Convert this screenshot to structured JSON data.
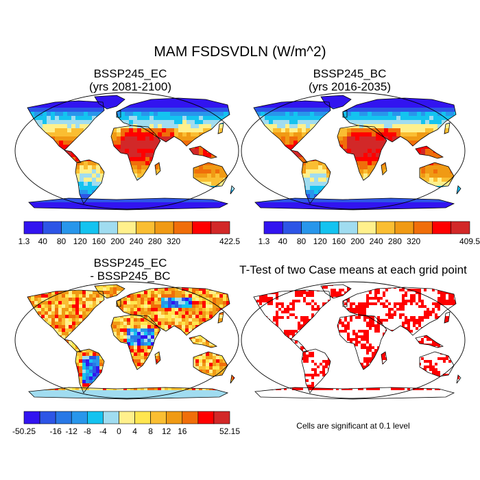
{
  "title": "MAM FSDSVDLN (W/m^2)",
  "chart_data": [
    {
      "type": "map",
      "id": "ec",
      "title": "BSSP245_EC",
      "subtitle": "(yrs 2081-2100)",
      "colorbar": {
        "labels": [
          "1.3",
          "40",
          "80",
          "120",
          "160",
          "200",
          "240",
          "280",
          "320",
          "",
          "422.5"
        ],
        "colors": [
          "#3214f0",
          "#2d55e6",
          "#2896eb",
          "#14c3f0",
          "#a0dcf0",
          "#fff08c",
          "#fabe32",
          "#f09a14",
          "#f06e0a",
          "#ff0000",
          "#d22828"
        ]
      }
    },
    {
      "type": "map",
      "id": "bc",
      "title": "BSSP245_BC",
      "subtitle": "(yrs 2016-2035)",
      "colorbar": {
        "labels": [
          "1.3",
          "40",
          "80",
          "120",
          "160",
          "200",
          "240",
          "280",
          "320",
          "",
          "409.5"
        ],
        "colors": [
          "#3214f0",
          "#2d55e6",
          "#2896eb",
          "#14c3f0",
          "#a0dcf0",
          "#fff08c",
          "#fabe32",
          "#f09a14",
          "#f06e0a",
          "#ff0000",
          "#d22828"
        ]
      }
    },
    {
      "type": "map",
      "id": "diff",
      "title": "BSSP245_EC",
      "subtitle": "- BSSP245_BC",
      "colorbar": {
        "labels": [
          "-50.25",
          "",
          "-16",
          "-12",
          "-8",
          "-4",
          "0",
          "4",
          "8",
          "12",
          "16",
          "",
          "52.15"
        ],
        "colors": [
          "#3214f0",
          "#2d55e6",
          "#2878e6",
          "#2896eb",
          "#14c3f0",
          "#a0dcf0",
          "#fff08c",
          "#ffe650",
          "#fabe32",
          "#f09a14",
          "#f06e0a",
          "#ff0000",
          "#d22828"
        ]
      }
    },
    {
      "type": "map",
      "id": "ttest",
      "title": "T-Test of two Case means at each grid point",
      "note": "Cells are significant at 0.1 level",
      "sig_color": "#ff0000"
    }
  ]
}
